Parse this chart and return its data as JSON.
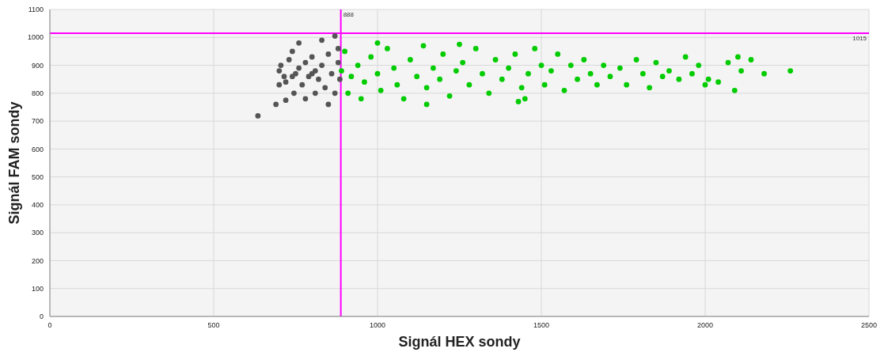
{
  "chart_data": {
    "type": "scatter",
    "xlabel": "Signál HEX sondy",
    "ylabel": "Signál FAM sondy",
    "xlim": [
      0,
      2500
    ],
    "xticks": [
      0,
      500,
      1000,
      1500,
      2000,
      2500
    ],
    "ylim": [
      0,
      1100
    ],
    "yticks": [
      0,
      100,
      200,
      300,
      400,
      500,
      600,
      700,
      800,
      900,
      1000,
      1100
    ],
    "grid": true,
    "marker": "circle",
    "ref_lines": [
      {
        "axis": "x",
        "value": 888,
        "label": "888",
        "color": "#ff00ff"
      },
      {
        "axis": "y",
        "value": 1015,
        "label": "1015",
        "color": "#ff00ff"
      }
    ],
    "series": [
      {
        "color": "#555555",
        "x": [
          635,
          690,
          700,
          705,
          715,
          720,
          730,
          740,
          745,
          750,
          760,
          770,
          780,
          790,
          800,
          810,
          820,
          830,
          840,
          850,
          860,
          870,
          880,
          885,
          760,
          830,
          870,
          780,
          720,
          850,
          880,
          800,
          810,
          740,
          700
        ],
        "values": [
          719,
          760,
          880,
          900,
          860,
          840,
          920,
          950,
          800,
          870,
          890,
          830,
          910,
          860,
          870,
          880,
          850,
          900,
          820,
          940,
          870,
          800,
          910,
          850,
          980,
          990,
          1005,
          780,
          775,
          760,
          960,
          930,
          800,
          860,
          830
        ]
      },
      {
        "color": "#00cc00",
        "x": [
          890,
          900,
          910,
          920,
          940,
          950,
          960,
          980,
          1000,
          1010,
          1030,
          1050,
          1060,
          1080,
          1100,
          1120,
          1140,
          1150,
          1170,
          1190,
          1200,
          1220,
          1240,
          1260,
          1280,
          1300,
          1320,
          1340,
          1360,
          1380,
          1400,
          1420,
          1430,
          1440,
          1460,
          1480,
          1500,
          1510,
          1530,
          1550,
          1570,
          1590,
          1610,
          1630,
          1650,
          1670,
          1690,
          1710,
          1740,
          1760,
          1790,
          1810,
          1830,
          1850,
          1870,
          1890,
          1920,
          1940,
          1960,
          1980,
          2000,
          2010,
          2040,
          2070,
          2090,
          2100,
          2110,
          2140,
          2180,
          2260,
          1150,
          1450,
          1000,
          1250
        ],
        "values": [
          880,
          950,
          800,
          860,
          900,
          780,
          840,
          930,
          870,
          810,
          960,
          890,
          830,
          780,
          920,
          860,
          970,
          820,
          890,
          850,
          940,
          790,
          880,
          910,
          830,
          960,
          870,
          800,
          920,
          850,
          890,
          940,
          770,
          820,
          870,
          960,
          900,
          830,
          880,
          940,
          810,
          900,
          850,
          920,
          870,
          830,
          900,
          860,
          890,
          830,
          920,
          870,
          820,
          910,
          860,
          880,
          850,
          930,
          870,
          900,
          830,
          850,
          840,
          910,
          810,
          930,
          880,
          920,
          870,
          880,
          760,
          780,
          980,
          975
        ]
      }
    ]
  }
}
